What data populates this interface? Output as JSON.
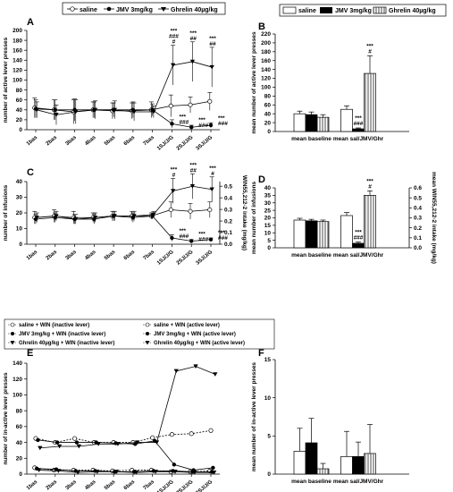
{
  "panels": {
    "A": "A",
    "B": "B",
    "C": "C",
    "D": "D",
    "E": "E",
    "F": "F"
  },
  "top_legend": [
    "saline",
    "JMV 3mg/kg",
    "Ghrelin 40µg/kg"
  ],
  "bar_legend": [
    "saline",
    "JMV 3mg/kg",
    "Ghrelin 40µg/kg"
  ],
  "e_legend": [
    "saline + WIN (inactive lever)",
    "saline + WIN (active lever)",
    "JMV 3mg/kg + WIN (inactive lever)",
    "JMV 3mg/kg + WIN (active lever)",
    "Ghrelin 40µg/kg + WIN (inactive lever)",
    "Ghrelin 40µg/kg + WIN (active lever)"
  ],
  "chart_data": [
    {
      "panel": "A",
      "type": "line",
      "x": [
        "1bas",
        "2bas",
        "3bas",
        "4bas",
        "5bas",
        "6bas",
        "7bas",
        "1SJ/J/G",
        "2SJ/J/G",
        "3SJ/J/G"
      ],
      "ylabel": "number of active lever presses",
      "ylim": [
        0,
        200
      ],
      "yticks": [
        0,
        20,
        40,
        60,
        80,
        100,
        120,
        140,
        160,
        180,
        200
      ],
      "series": [
        {
          "name": "saline",
          "values": [
            44,
            40,
            36,
            40,
            38,
            38,
            40,
            48,
            50,
            57
          ],
          "err": [
            20,
            20,
            24,
            16,
            16,
            16,
            16,
            22,
            16,
            18
          ]
        },
        {
          "name": "JMV 3mg/kg",
          "values": [
            42,
            40,
            40,
            40,
            40,
            40,
            40,
            12,
            5,
            9
          ],
          "err": [
            18,
            20,
            22,
            16,
            14,
            16,
            12,
            8,
            4,
            5
          ]
        },
        {
          "name": "Ghrelin 40µg/kg",
          "values": [
            40,
            30,
            36,
            40,
            40,
            36,
            36,
            130,
            137,
            126
          ],
          "err": [
            16,
            20,
            24,
            18,
            18,
            18,
            12,
            40,
            40,
            40
          ]
        }
      ],
      "annotations": [
        {
          "x": "1SJ/J/G",
          "above": [
            "***",
            "###",
            "#"
          ],
          "below": [
            "***",
            "###"
          ]
        },
        {
          "x": "2SJ/J/G",
          "above": [
            "***",
            "##"
          ],
          "below": [
            "***",
            "###"
          ]
        },
        {
          "x": "3SJ/J/G",
          "above": [
            "***",
            "##"
          ],
          "below": [
            "***",
            "###"
          ]
        }
      ]
    },
    {
      "panel": "B",
      "type": "bar",
      "categories": [
        "mean baseline",
        "mean sal/JMV/Ghr"
      ],
      "ylabel": "mean number of active lever presses",
      "ylim": [
        0,
        220
      ],
      "yticks": [
        0,
        20,
        40,
        60,
        80,
        100,
        120,
        140,
        160,
        180,
        200,
        220
      ],
      "series": [
        {
          "name": "saline",
          "values": [
            40,
            50
          ],
          "err": [
            6,
            8
          ]
        },
        {
          "name": "JMV 3mg/kg",
          "values": [
            38,
            6
          ],
          "err": [
            6,
            2
          ]
        },
        {
          "name": "Ghrelin 40µg/kg",
          "values": [
            32,
            131
          ],
          "err": [
            6,
            40
          ]
        }
      ],
      "annotations": [
        {
          "category": "mean sal/JMV/Ghr",
          "series": "JMV 3mg/kg",
          "marks": [
            "***",
            "###"
          ]
        },
        {
          "category": "mean sal/JMV/Ghr",
          "series": "Ghrelin 40µg/kg",
          "marks": [
            "***",
            "#"
          ]
        }
      ]
    },
    {
      "panel": "C",
      "type": "line",
      "x": [
        "1bas",
        "2bas",
        "3bas",
        "4bas",
        "5bas",
        "6bas",
        "7bas",
        "1SJ/J/G",
        "2SJ/J/G",
        "3SJ/J/G"
      ],
      "ylabel": "number of infusions",
      "ylim": [
        0,
        40
      ],
      "yticks": [
        0,
        10,
        20,
        30,
        40
      ],
      "y2label": "WIN55,212-2 intake (mg/kg)",
      "y2lim": [
        0,
        0.54
      ],
      "y2ticks": [
        0.0,
        0.1,
        0.2,
        0.3,
        0.4,
        0.5
      ],
      "series": [
        {
          "name": "saline",
          "values": [
            17,
            18,
            17,
            17,
            18,
            18,
            18,
            22,
            21,
            22
          ],
          "err": [
            4,
            4,
            4,
            3,
            3,
            3,
            2,
            5,
            5,
            5
          ]
        },
        {
          "name": "JMV 3mg/kg",
          "values": [
            16,
            17,
            16,
            16,
            18,
            17,
            18,
            4,
            2,
            3
          ],
          "err": [
            3,
            3,
            3,
            3,
            3,
            3,
            2,
            2,
            1,
            1
          ]
        },
        {
          "name": "Ghrelin 40µg/kg",
          "values": [
            17,
            18,
            16,
            17,
            18,
            18,
            19,
            34,
            37,
            35
          ],
          "err": [
            3,
            3,
            3,
            3,
            3,
            3,
            2,
            8,
            8,
            8
          ]
        }
      ],
      "annotations": [
        {
          "x": "1SJ/J/G",
          "above": [
            "***",
            "#"
          ],
          "below": [
            "***",
            "###"
          ]
        },
        {
          "x": "2SJ/J/G",
          "above": [
            "***",
            "##"
          ],
          "below": [
            "***",
            "###"
          ]
        },
        {
          "x": "3SJ/J/G",
          "above": [
            "***",
            "#"
          ],
          "below": [
            "***",
            "###"
          ]
        }
      ]
    },
    {
      "panel": "D",
      "type": "bar",
      "categories": [
        "mean baseline",
        "mean sal/JMV/Ghr"
      ],
      "ylabel": "mean number of infusions",
      "ylim": [
        0,
        40
      ],
      "yticks": [
        0,
        5,
        10,
        15,
        20,
        25,
        30,
        35,
        40
      ],
      "y2label": "mean WIN55,212-2 intake (mg/kg)",
      "y2lim": [
        0,
        0.6
      ],
      "y2ticks": [
        0.0,
        0.1,
        0.2,
        0.3,
        0.4,
        0.5,
        0.6
      ],
      "series": [
        {
          "name": "saline",
          "values": [
            18.5,
            21.5
          ],
          "err": [
            1.2,
            2
          ]
        },
        {
          "name": "JMV 3mg/kg",
          "values": [
            18,
            3
          ],
          "err": [
            1,
            0.8
          ]
        },
        {
          "name": "Ghrelin 40µg/kg",
          "values": [
            17.5,
            35
          ],
          "err": [
            1,
            3
          ]
        }
      ],
      "annotations": [
        {
          "category": "mean sal/JMV/Ghr",
          "series": "JMV 3mg/kg",
          "marks": [
            "***",
            "###"
          ]
        },
        {
          "category": "mean sal/JMV/Ghr",
          "series": "Ghrelin 40µg/kg",
          "marks": [
            "***",
            "#"
          ]
        }
      ]
    },
    {
      "panel": "E",
      "type": "line",
      "x": [
        "1bas",
        "2bas",
        "3bas",
        "4bas",
        "5bas",
        "6bas",
        "7bas",
        "1SJ/J/G",
        "2SJ/J/G",
        "3SJ/J/G"
      ],
      "ylabel": "number of in-active lever presses",
      "ylim": [
        0,
        140
      ],
      "yticks": [
        0,
        20,
        40,
        60,
        80,
        100,
        120,
        140
      ],
      "series": [
        {
          "name": "saline + WIN (inactive lever)",
          "values": [
            8,
            5,
            5,
            5,
            4,
            5,
            5,
            3,
            3,
            4
          ]
        },
        {
          "name": "saline + WIN (active lever)",
          "values": [
            45,
            40,
            45,
            40,
            40,
            40,
            46,
            50,
            51,
            55
          ]
        },
        {
          "name": "JMV 3mg/kg + WIN (inactive lever)",
          "values": [
            7,
            6,
            4,
            4,
            3,
            3,
            4,
            4,
            3,
            3
          ]
        },
        {
          "name": "JMV 3mg/kg + WIN (active lever)",
          "values": [
            43,
            40,
            40,
            40,
            39,
            38,
            42,
            12,
            5,
            8
          ]
        },
        {
          "name": "Ghrelin 40µg/kg + WIN (inactive lever)",
          "values": [
            5,
            4,
            2,
            3,
            3,
            2,
            3,
            3,
            2,
            2
          ]
        },
        {
          "name": "Ghrelin 40µg/kg + WIN (active lever)",
          "values": [
            33,
            35,
            35,
            38,
            38,
            40,
            40,
            130,
            136,
            126
          ]
        }
      ]
    },
    {
      "panel": "F",
      "type": "bar",
      "categories": [
        "mean baseline",
        "mean sal/JMV/Ghr"
      ],
      "ylabel": "mean number of in-active lever presses",
      "ylim": [
        0,
        15
      ],
      "yticks": [
        0,
        5,
        10,
        15
      ],
      "series": [
        {
          "name": "saline",
          "values": [
            3,
            2.3
          ],
          "err": [
            3,
            3.3
          ]
        },
        {
          "name": "JMV 3mg/kg",
          "values": [
            4.1,
            2.3
          ],
          "err": [
            3.2,
            1.9
          ]
        },
        {
          "name": "Ghrelin 40µg/kg",
          "values": [
            0.7,
            2.7
          ],
          "err": [
            0.7,
            3.8
          ]
        }
      ]
    }
  ]
}
